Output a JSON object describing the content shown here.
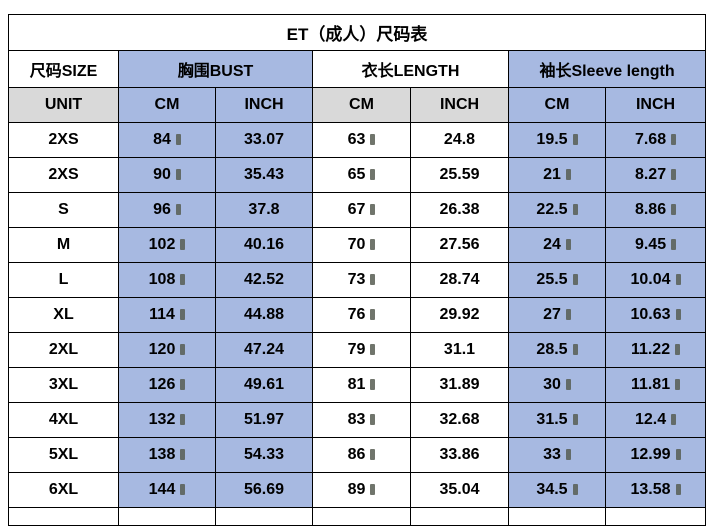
{
  "chart_data": {
    "type": "table",
    "title": "ET（成人）尺码表",
    "groups": [
      {
        "key": "size",
        "label": "尺码SIZE",
        "span": 1,
        "bg": "white"
      },
      {
        "key": "bust",
        "label": "胸围BUST",
        "span": 2,
        "bg": "blue"
      },
      {
        "key": "length",
        "label": "衣长LENGTH",
        "span": 2,
        "bg": "white"
      },
      {
        "key": "sleeve",
        "label": "袖长Sleeve length",
        "span": 2,
        "bg": "blue"
      }
    ],
    "unit_row": [
      "UNIT",
      "CM",
      "INCH",
      "CM",
      "INCH",
      "CM",
      "INCH"
    ],
    "rows": [
      [
        "2XS",
        "84",
        "33.07",
        "63",
        "24.8",
        "19.5",
        "7.68"
      ],
      [
        "2XS",
        "90",
        "35.43",
        "65",
        "25.59",
        "21",
        "8.27"
      ],
      [
        "S",
        "96",
        "37.8",
        "67",
        "26.38",
        "22.5",
        "8.86"
      ],
      [
        "M",
        "102",
        "40.16",
        "70",
        "27.56",
        "24",
        "9.45"
      ],
      [
        "L",
        "108",
        "42.52",
        "73",
        "28.74",
        "25.5",
        "10.04"
      ],
      [
        "XL",
        "114",
        "44.88",
        "76",
        "29.92",
        "27",
        "10.63"
      ],
      [
        "2XL",
        "120",
        "47.24",
        "79",
        "31.1",
        "28.5",
        "11.22"
      ],
      [
        "3XL",
        "126",
        "49.61",
        "81",
        "31.89",
        "30",
        "11.81"
      ],
      [
        "4XL",
        "132",
        "51.97",
        "83",
        "32.68",
        "31.5",
        "12.4"
      ],
      [
        "5XL",
        "138",
        "54.33",
        "86",
        "33.86",
        "33",
        "12.99"
      ],
      [
        "6XL",
        "144",
        "56.69",
        "89",
        "35.04",
        "34.5",
        "13.58"
      ]
    ]
  },
  "style": {
    "colors": {
      "blue": "#a7b9e1",
      "gray": "#d9d9d9",
      "white": "#ffffff",
      "border": "#000000",
      "text": "#000000",
      "marker": "#575d52"
    },
    "columns": [
      {
        "key": "size",
        "bg": "white",
        "unit_bg": "gray",
        "marker": false
      },
      {
        "key": "bust-cm",
        "bg": "blue",
        "unit_bg": "blue",
        "marker": true
      },
      {
        "key": "bust-inch",
        "bg": "blue",
        "unit_bg": "blue",
        "marker": false
      },
      {
        "key": "length-cm",
        "bg": "white",
        "unit_bg": "gray",
        "marker": true
      },
      {
        "key": "length-inch",
        "bg": "white",
        "unit_bg": "gray",
        "marker": false
      },
      {
        "key": "sleeve-cm",
        "bg": "blue",
        "unit_bg": "blue",
        "marker": true
      },
      {
        "key": "sleeve-inch",
        "bg": "blue",
        "unit_bg": "blue",
        "marker": true
      }
    ]
  }
}
